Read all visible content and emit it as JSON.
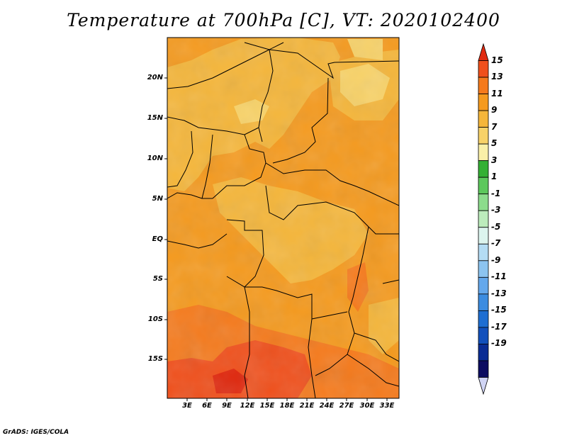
{
  "title": "Temperature at 700hPa [C], VT: 2020102400",
  "credit": "GrADS: IGES/COLA",
  "map": {
    "lat_ticks": [
      "20N",
      "15N",
      "10N",
      "5N",
      "EQ",
      "5S",
      "10S",
      "15S"
    ],
    "lon_ticks": [
      "3E",
      "6E",
      "9E",
      "12E",
      "15E",
      "18E",
      "21E",
      "24E",
      "27E",
      "30E",
      "33E"
    ]
  },
  "colorbar": {
    "labels": [
      "15",
      "13",
      "11",
      "9",
      "7",
      "5",
      "3",
      "1",
      "-1",
      "-3",
      "-5",
      "-7",
      "-9",
      "-11",
      "-13",
      "-15",
      "-17",
      "-19"
    ],
    "colors": [
      "#e02a10",
      "#f0501c",
      "#f57a1c",
      "#f59a1e",
      "#f5b63a",
      "#f8d268",
      "#faf0a8",
      "#34b034",
      "#5cc85c",
      "#8cdc8c",
      "#bcecbc",
      "#dcf4ee",
      "#b4dcf4",
      "#8cc4f0",
      "#64a8ec",
      "#3c8ce0",
      "#1e6ed2",
      "#1250bc",
      "#0a2c94",
      "#0c0c60",
      "#d0d4f4"
    ]
  }
}
